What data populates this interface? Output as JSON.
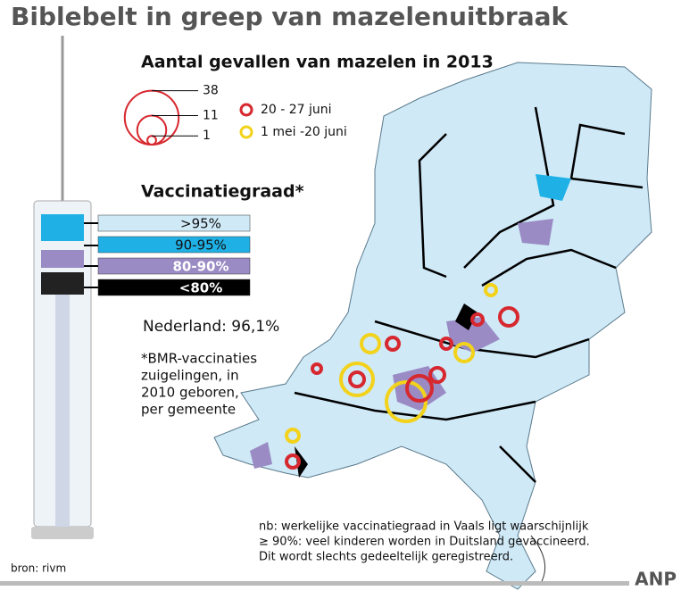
{
  "title": "Biblebelt in greep van mazelenuitbraak",
  "subtitle": "Aantal gevallen van mazelen in 2013",
  "size_legend": {
    "values": [
      38,
      11,
      1
    ]
  },
  "period_legend": [
    {
      "label": "20 - 27 juni",
      "color": "#d7282f"
    },
    {
      "label": "1 mei -20 juni",
      "color": "#f2d21b"
    }
  ],
  "vaccination_title": "Vaccinatiegraad*",
  "vaccination_legend": [
    {
      "label": ">95%",
      "color": "#cfe9f7"
    },
    {
      "label": "90-95%",
      "color": "#1fb1e6"
    },
    {
      "label": "80-90%",
      "color": "#9a8bc4"
    },
    {
      "label": "<80%",
      "color": "#000000"
    }
  ],
  "national": "Nederland: 96,1%",
  "footnote": [
    "*BMR-vaccinaties",
    "zuigelingen, in",
    "2010 geboren,",
    "per gemeente"
  ],
  "note": [
    "nb: werkelijke vaccinatiegraad in Vaals ligt waarschijnlijk",
    "≥ 90%: veel kinderen worden in Duitsland gevaccineerd.",
    "Dit wordt slechts gedeeltelijk geregistreerd."
  ],
  "source": "bron: rivm",
  "brand": "ANP"
}
